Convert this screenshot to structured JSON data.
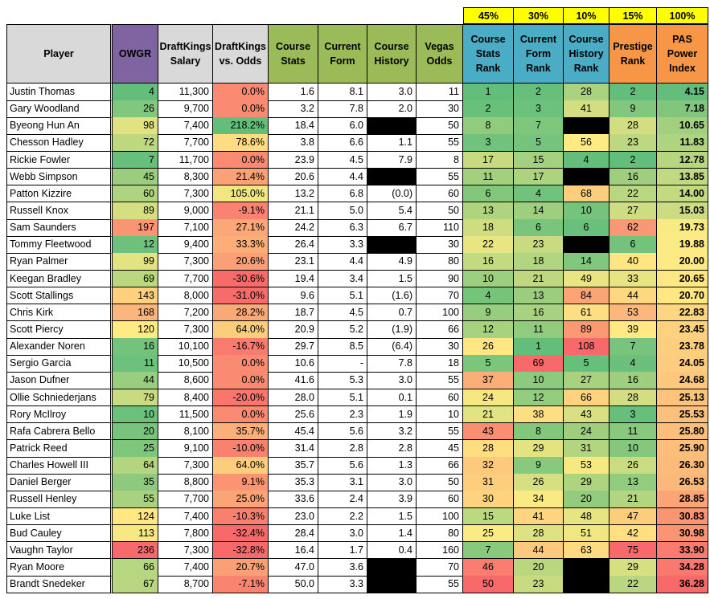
{
  "colors": {
    "weight_bg": "#ffff00",
    "header_grey": "#d9d9d9",
    "header_purple": "#8064a2",
    "header_green": "#9bbb59",
    "header_blue": "#4bacc6",
    "header_orange": "#f79646",
    "blank": "#000000",
    "scale_good": "#63be7b",
    "scale_mid": "#ffeb84",
    "scale_bad": "#f8696b"
  },
  "weights": [
    "45%",
    "30%",
    "10%",
    "15%",
    "100%"
  ],
  "headers": [
    "Player",
    "OWGR",
    "DraftKings Salary",
    "DraftKings vs. Odds",
    "Course Stats",
    "Current Form",
    "Course History",
    "Vegas Odds",
    "Course Stats Rank",
    "Current Form Rank",
    "Course History Rank",
    "Prestige Rank",
    "PAS Power Index"
  ],
  "rows": [
    [
      "Justin Thomas",
      "4",
      "11,300",
      "0.0%",
      "1.6",
      "8.1",
      "3.0",
      "11",
      "1",
      "2",
      "28",
      "2",
      "4.15"
    ],
    [
      "Gary Woodland",
      "26",
      "9,700",
      "0.0%",
      "3.2",
      "7.8",
      "2.0",
      "30",
      "2",
      "3",
      "41",
      "9",
      "7.18"
    ],
    [
      "Byeong Hun An",
      "98",
      "7,400",
      "218.2%",
      "18.4",
      "6.0",
      "",
      "50",
      "8",
      "7",
      "",
      "28",
      "10.65"
    ],
    [
      "Chesson Hadley",
      "72",
      "7,700",
      "78.6%",
      "3.8",
      "6.6",
      "1.1",
      "55",
      "3",
      "5",
      "56",
      "23",
      "11.83"
    ],
    [
      "Rickie Fowler",
      "7",
      "11,700",
      "0.0%",
      "23.9",
      "4.5",
      "7.9",
      "8",
      "17",
      "15",
      "4",
      "2",
      "12.78"
    ],
    [
      "Webb Simpson",
      "45",
      "8,300",
      "21.4%",
      "20.6",
      "4.4",
      "",
      "55",
      "11",
      "17",
      "",
      "16",
      "13.85"
    ],
    [
      "Patton Kizzire",
      "60",
      "7,300",
      "105.0%",
      "13.2",
      "6.8",
      "(0.0)",
      "60",
      "6",
      "4",
      "68",
      "22",
      "14.00"
    ],
    [
      "Russell Knox",
      "89",
      "9,000",
      "-9.1%",
      "21.1",
      "5.0",
      "5.4",
      "50",
      "13",
      "14",
      "10",
      "27",
      "15.03"
    ],
    [
      "Sam Saunders",
      "197",
      "7,100",
      "27.1%",
      "24.2",
      "6.3",
      "6.7",
      "110",
      "18",
      "6",
      "6",
      "62",
      "19.73"
    ],
    [
      "Tommy Fleetwood",
      "12",
      "9,400",
      "33.3%",
      "26.4",
      "3.3",
      "",
      "30",
      "22",
      "23",
      "",
      "6",
      "19.88"
    ],
    [
      "Ryan Palmer",
      "99",
      "7,300",
      "20.6%",
      "23.1",
      "4.4",
      "4.9",
      "80",
      "16",
      "18",
      "14",
      "40",
      "20.00"
    ],
    [
      "Keegan Bradley",
      "69",
      "7,700",
      "-30.6%",
      "19.4",
      "3.4",
      "1.5",
      "90",
      "10",
      "21",
      "49",
      "33",
      "20.65"
    ],
    [
      "Scott Stallings",
      "143",
      "8,000",
      "-31.0%",
      "9.6",
      "5.1",
      "(1.6)",
      "70",
      "4",
      "13",
      "84",
      "44",
      "20.70"
    ],
    [
      "Chris Kirk",
      "168",
      "7,200",
      "28.2%",
      "18.7",
      "4.5",
      "0.7",
      "100",
      "9",
      "16",
      "61",
      "53",
      "22.83"
    ],
    [
      "Scott Piercy",
      "120",
      "7,300",
      "64.0%",
      "20.9",
      "5.2",
      "(1.9)",
      "66",
      "12",
      "11",
      "89",
      "39",
      "23.45"
    ],
    [
      "Alexander Noren",
      "16",
      "10,100",
      "-16.7%",
      "29.7",
      "8.5",
      "(6.4)",
      "30",
      "26",
      "1",
      "108",
      "7",
      "23.78"
    ],
    [
      "Sergio Garcia",
      "11",
      "10,500",
      "0.0%",
      "10.6",
      "-",
      "7.8",
      "18",
      "5",
      "69",
      "5",
      "4",
      "24.05"
    ],
    [
      "Jason Dufner",
      "44",
      "8,600",
      "0.0%",
      "41.6",
      "5.3",
      "3.0",
      "55",
      "37",
      "10",
      "27",
      "16",
      "24.68"
    ],
    [
      "Ollie Schniederjans",
      "79",
      "8,400",
      "-20.0%",
      "28.0",
      "5.1",
      "0.1",
      "60",
      "24",
      "12",
      "66",
      "28",
      "25.13"
    ],
    [
      "Rory McIlroy",
      "10",
      "11,500",
      "0.0%",
      "25.6",
      "2.3",
      "1.9",
      "10",
      "21",
      "38",
      "43",
      "3",
      "25.53"
    ],
    [
      "Rafa Cabrera Bello",
      "20",
      "8,100",
      "35.7%",
      "45.4",
      "5.6",
      "3.2",
      "55",
      "43",
      "8",
      "24",
      "11",
      "25.80"
    ],
    [
      "Patrick Reed",
      "25",
      "9,100",
      "-10.0%",
      "31.4",
      "2.8",
      "2.8",
      "45",
      "28",
      "29",
      "31",
      "10",
      "25.90"
    ],
    [
      "Charles Howell III",
      "64",
      "7,300",
      "64.0%",
      "35.7",
      "5.6",
      "1.3",
      "66",
      "32",
      "9",
      "53",
      "26",
      "26.30"
    ],
    [
      "Daniel Berger",
      "35",
      "8,800",
      "9.1%",
      "35.3",
      "3.1",
      "3.0",
      "50",
      "31",
      "26",
      "29",
      "13",
      "26.53"
    ],
    [
      "Russell Henley",
      "55",
      "7,700",
      "25.0%",
      "33.6",
      "2.4",
      "3.9",
      "60",
      "30",
      "34",
      "20",
      "21",
      "28.85"
    ],
    [
      "Luke List",
      "124",
      "7,400",
      "-10.3%",
      "23.0",
      "2.2",
      "1.5",
      "100",
      "15",
      "41",
      "48",
      "47",
      "30.83"
    ],
    [
      "Bud Cauley",
      "113",
      "7,800",
      "-32.4%",
      "28.4",
      "3.0",
      "1.4",
      "80",
      "25",
      "28",
      "51",
      "42",
      "30.98"
    ],
    [
      "Vaughn Taylor",
      "236",
      "7,300",
      "-32.8%",
      "16.4",
      "1.7",
      "0.4",
      "160",
      "7",
      "44",
      "63",
      "75",
      "33.90"
    ],
    [
      "Ryan Moore",
      "66",
      "7,400",
      "20.7%",
      "47.0",
      "3.6",
      "",
      "70",
      "46",
      "20",
      "",
      "29",
      "34.28"
    ],
    [
      "Brandt Snedeker",
      "67",
      "8,700",
      "-7.1%",
      "50.0",
      "3.3",
      "",
      "55",
      "50",
      "23",
      "",
      "22",
      "36.28"
    ]
  ]
}
